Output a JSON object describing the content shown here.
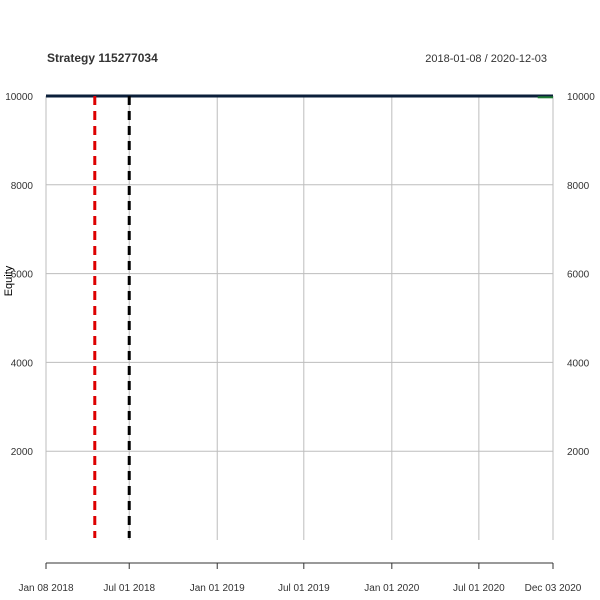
{
  "chart_data": {
    "type": "line",
    "title": "Strategy 115277034",
    "date_range": "2018-01-08 / 2020-12-03",
    "ylabel": "Equity",
    "xlabel": "",
    "ylim": [
      0,
      10000
    ],
    "xlim": [
      "2018-01-08",
      "2020-12-03"
    ],
    "y_ticks": [
      2000,
      4000,
      6000,
      8000,
      10000
    ],
    "x_ticks": [
      {
        "date": "2018-01-08",
        "label": "Jan 08 2018"
      },
      {
        "date": "2018-07-01",
        "label": "Jul 01 2018"
      },
      {
        "date": "2019-01-01",
        "label": "Jan 01 2019"
      },
      {
        "date": "2019-07-01",
        "label": "Jul 01 2019"
      },
      {
        "date": "2020-01-01",
        "label": "Jan 01 2020"
      },
      {
        "date": "2020-07-01",
        "label": "Jul 01 2020"
      },
      {
        "date": "2020-12-03",
        "label": "Dec 03 2020"
      }
    ],
    "grid": true,
    "series": [
      {
        "color": "#0b1f3a",
        "points": [
          [
            "2018-01-08",
            10000
          ],
          [
            "2020-12-03",
            10000
          ]
        ]
      },
      {
        "color": "#1e7b34",
        "points": [
          [
            "2020-11-01",
            9970
          ],
          [
            "2020-12-03",
            9970
          ]
        ]
      }
    ],
    "markers": [
      {
        "date": "2018-04-20",
        "color": "#dd0000",
        "style": "dashed"
      },
      {
        "date": "2018-07-01",
        "color": "#000000",
        "style": "dashed"
      }
    ]
  }
}
